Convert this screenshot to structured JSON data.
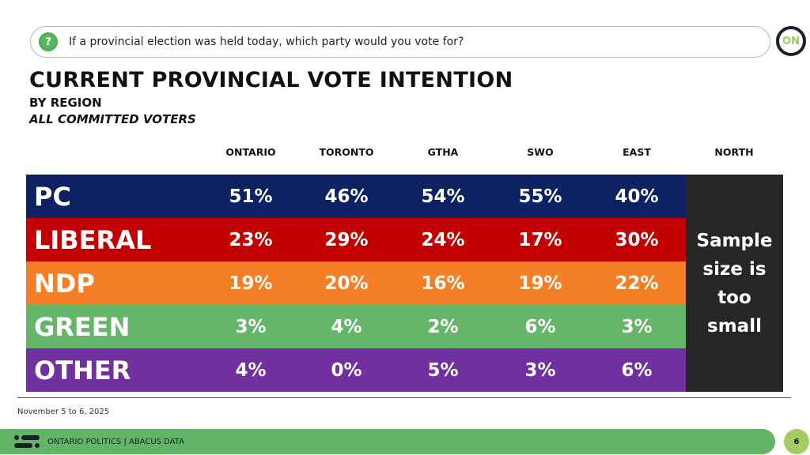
{
  "question": {
    "icon": "question-bubble-icon",
    "text": "If a provincial election was held today, which party would you vote for?"
  },
  "logo": {
    "text": "ON"
  },
  "header": {
    "title": "CURRENT PROVINCIAL VOTE INTENTION",
    "subtitle": "BY REGION",
    "subtitle2": "ALL COMMITTED VOTERS"
  },
  "chart_data": {
    "type": "table",
    "title": "CURRENT PROVINCIAL VOTE INTENTION",
    "columns": [
      "ONTARIO",
      "TORONTO",
      "GTHA",
      "SWO",
      "EAST",
      "NORTH"
    ],
    "rows": [
      {
        "party": "PC",
        "color": "#0d2163",
        "values": [
          "51%",
          "46%",
          "54%",
          "55%",
          "40%"
        ]
      },
      {
        "party": "LIBERAL",
        "color": "#c30000",
        "values": [
          "23%",
          "29%",
          "24%",
          "17%",
          "30%"
        ]
      },
      {
        "party": "NDP",
        "color": "#f47f26",
        "values": [
          "19%",
          "20%",
          "16%",
          "19%",
          "22%"
        ]
      },
      {
        "party": "GREEN",
        "color": "#66b66a",
        "values": [
          "3%",
          "4%",
          "2%",
          "6%",
          "3%"
        ]
      },
      {
        "party": "OTHER",
        "color": "#7030a0",
        "values": [
          "4%",
          "0%",
          "5%",
          "3%",
          "6%"
        ]
      }
    ],
    "north_note": "Sample size is too small"
  },
  "footer": {
    "date": "November 5 to 6, 2025",
    "label": "ONTARIO POLITICS  |  ABACUS DATA",
    "page": "6"
  }
}
